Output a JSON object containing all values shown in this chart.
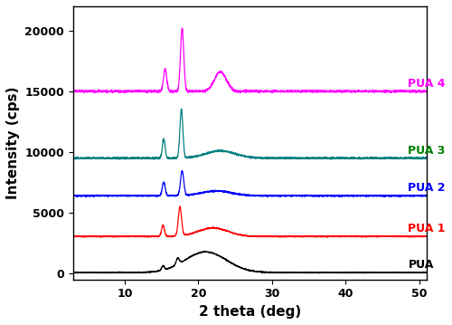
{
  "title": "",
  "xlabel": "2 theta (deg)",
  "ylabel": "Intensity (cps)",
  "xlim": [
    3,
    51
  ],
  "ylim": [
    -500,
    22000
  ],
  "yticks": [
    0,
    5000,
    10000,
    15000,
    20000
  ],
  "xticks": [
    10,
    20,
    30,
    40,
    50
  ],
  "series": [
    {
      "name": "PUA",
      "color": "#000000",
      "baseline": 100,
      "label_color": "#000000"
    },
    {
      "name": "PUA 1",
      "color": "#ff0000",
      "baseline": 3000,
      "label_color": "#ff0000"
    },
    {
      "name": "PUA 2",
      "color": "#0000ff",
      "baseline": 6400,
      "label_color": "#0000ff"
    },
    {
      "name": "PUA 3",
      "color": "#008080",
      "baseline": 9500,
      "label_color": "#008000"
    },
    {
      "name": "PUA 4",
      "color": "#ff00ff",
      "baseline": 15000,
      "label_color": "#ff00ff"
    }
  ],
  "background_color": "#ffffff",
  "tick_fontsize": 9,
  "label_fontsize": 11,
  "label_fontsize_series": 9,
  "linewidth": 0.9
}
